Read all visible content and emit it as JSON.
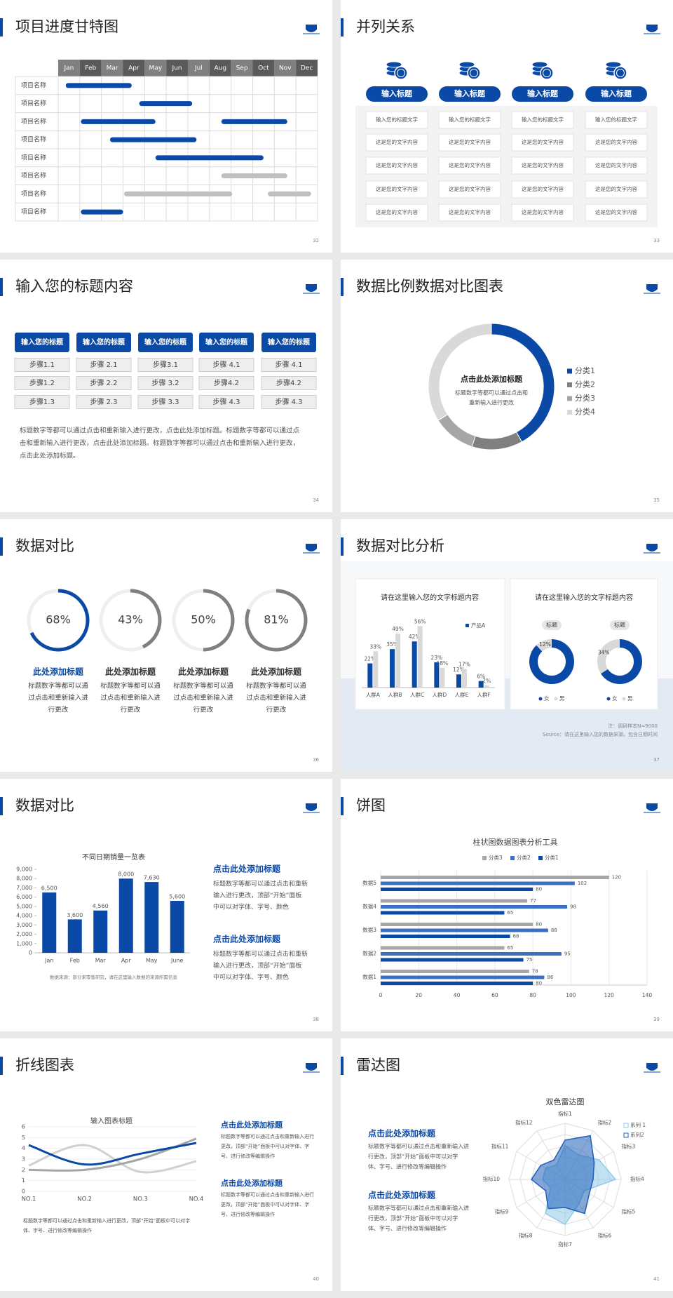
{
  "slides": [
    {
      "title": "项目进度甘特图",
      "page": "32",
      "chart_data": {
        "type": "gantt",
        "categories": [
          "Jan",
          "Feb",
          "Mar",
          "Apr",
          "May",
          "Jun",
          "Jul",
          "Aug",
          "Sep",
          "Oct",
          "Nov",
          "Dec"
        ],
        "rows": [
          {
            "label": "项目名称",
            "bars": [
              {
                "start": 0.35,
                "end": 3.4,
                "color": "#0b49a6"
              }
            ]
          },
          {
            "label": "项目名称",
            "bars": [
              {
                "start": 3.75,
                "end": 6.2,
                "color": "#0b49a6"
              }
            ]
          },
          {
            "label": "项目名称",
            "bars": [
              {
                "start": 1.05,
                "end": 4.5,
                "color": "#0b49a6"
              },
              {
                "start": 7.55,
                "end": 10.6,
                "color": "#0b49a6"
              }
            ]
          },
          {
            "label": "项目名称",
            "bars": [
              {
                "start": 2.4,
                "end": 6.4,
                "color": "#0b49a6"
              }
            ]
          },
          {
            "label": "项目名称",
            "bars": [
              {
                "start": 4.5,
                "end": 9.5,
                "color": "#0b49a6"
              }
            ]
          },
          {
            "label": "项目名称",
            "bars": [
              {
                "start": 7.55,
                "end": 10.6,
                "color": "#bfbfbf"
              }
            ]
          },
          {
            "label": "项目名称",
            "bars": [
              {
                "start": 3.05,
                "end": 8.05,
                "color": "#bfbfbf"
              },
              {
                "start": 9.7,
                "end": 11.7,
                "color": "#bfbfbf"
              }
            ]
          },
          {
            "label": "项目名称",
            "bars": [
              {
                "start": 1.05,
                "end": 3.0,
                "color": "#0b49a6"
              }
            ]
          }
        ]
      }
    },
    {
      "title": "并列关系",
      "page": "33",
      "columns": [
        {
          "heading": "输入标题",
          "items": [
            "输入您的标题文字",
            "这是您的文字内容",
            "这是您的文字内容",
            "这是您的文字内容",
            "这是您的文字内容"
          ]
        },
        {
          "heading": "输入标题",
          "items": [
            "输入您的标题文字",
            "这是您的文字内容",
            "这是您的文字内容",
            "这是您的文字内容",
            "这是您的文字内容"
          ]
        },
        {
          "heading": "输入标题",
          "items": [
            "输入您的标题文字",
            "这是您的文字内容",
            "这是您的文字内容",
            "这是您的文字内容",
            "这是您的文字内容"
          ]
        },
        {
          "heading": "输入标题",
          "items": [
            "输入您的标题文字",
            "这是您的文字内容",
            "这是您的文字内容",
            "这是您的文字内容",
            "这是您的文字内容"
          ]
        }
      ]
    },
    {
      "title": "输入您的标题内容",
      "page": "34",
      "columns": [
        {
          "heading": "输入您的标题",
          "steps": [
            "步骤1.1",
            "步骤1.2",
            "步骤1.3"
          ]
        },
        {
          "heading": "输入您的标题",
          "steps": [
            "步骤 2.1",
            "步骤 2.2",
            "步骤 2.3"
          ]
        },
        {
          "heading": "输入您的标题",
          "steps": [
            "步骤3.1",
            "步骤 3.2",
            "步骤 3.3"
          ]
        },
        {
          "heading": "输入您的标题",
          "steps": [
            "步骤 4.1",
            "步骤4.2",
            "步骤 4.3"
          ]
        },
        {
          "heading": "输入您的标题",
          "steps": [
            "步骤 4.1",
            "步骤4.2",
            "步骤 4.3"
          ]
        }
      ],
      "paragraph": [
        "标题数字等都可以通过点击和重新输入进行更改，点击此处添加标题。标题数字等都可以通过点",
        "击和重新输入进行更改，点击此处添加标题。标题数字等都可以通过点击和重新输入进行更改，",
        "点击此处添加标题。"
      ]
    },
    {
      "title": "数据比例数据对比图表",
      "page": "35",
      "chart_data": {
        "type": "donut",
        "center_title": "点击此处添加标题",
        "center_text": [
          "标题数字等都可以通过点击和",
          "重新输入进行更改"
        ],
        "categories": [
          "分类1",
          "分类2",
          "分类3",
          "分类4"
        ],
        "values": [
          42,
          13,
          11,
          34
        ],
        "colors": [
          "#0b49a6",
          "#808080",
          "#a6a6a6",
          "#d9d9d9"
        ],
        "legend": "right"
      }
    },
    {
      "title": "数据对比",
      "page": "36",
      "chart_data": {
        "type": "rings",
        "values": [
          68,
          43,
          50,
          81
        ],
        "value_labels": [
          "68%",
          "43%",
          "50%",
          "81%"
        ],
        "colors": [
          "#0b49a6",
          "#808080",
          "#808080",
          "#808080"
        ],
        "ylim": [
          0,
          100
        ]
      },
      "items": [
        {
          "heading": "此处添加标题",
          "color": "#0b49a6",
          "text": [
            "标题数字等都可以通",
            "过点击和重新输入进",
            "行更改"
          ]
        },
        {
          "heading": "此处添加标题",
          "color": "#333333",
          "text": [
            "标题数字等都可以通",
            "过点击和重新输入进",
            "行更改"
          ]
        },
        {
          "heading": "此处添加标题",
          "color": "#333333",
          "text": [
            "标题数字等都可以通",
            "过点击和重新输入进",
            "行更改"
          ]
        },
        {
          "heading": "此处添加标题",
          "color": "#333333",
          "text": [
            "标题数字等都可以通",
            "过点击和重新输入进",
            "行更改"
          ]
        }
      ]
    },
    {
      "title": "数据对比分析",
      "page": "37",
      "chart_data": [
        {
          "type": "bar",
          "title": "请在这里输入您的文字标题内容",
          "categories": [
            "人群A",
            "人群B",
            "人群C",
            "人群D",
            "人群E",
            "人群F"
          ],
          "ylim": [
            0,
            60
          ],
          "series": [
            {
              "name": "产品A",
              "color": "#0b49a6",
              "values": [
                22,
                35,
                42,
                23,
                12,
                6
              ],
              "value_labels": [
                "22%",
                "35%",
                "42%",
                "23%",
                "12%",
                "6%"
              ]
            },
            {
              "color": "#d9d9d9",
              "values": [
                33,
                49,
                56,
                18,
                17,
                2
              ],
              "value_labels": [
                "33%",
                "49%",
                "56%",
                "18%",
                "17%",
                "2%"
              ]
            }
          ]
        },
        {
          "type": "donut-pair",
          "title": "请在这里输入您的文字标题内容",
          "categories": [
            "女",
            "男"
          ],
          "colors": [
            "#0b49a6",
            "#d9d9d9"
          ],
          "donuts": [
            {
              "label": "标题",
              "values": [
                88,
                12
              ],
              "value_labels": [
                null,
                "12%"
              ]
            },
            {
              "label": "标题",
              "values": [
                66,
                34
              ],
              "value_labels": [
                null,
                "34%"
              ]
            }
          ]
        }
      ],
      "notes": [
        "注：调研样本N=9000",
        "Source：请在这里输入您的数据来源，包含日期时间"
      ]
    },
    {
      "title": "数据对比",
      "page": "38",
      "chart_data": {
        "type": "bar",
        "title": "不同日期销量一览表",
        "categories": [
          "Jan",
          "Feb",
          "Mar",
          "Apr",
          "May",
          "June"
        ],
        "values": [
          6500,
          3600,
          4560,
          8000,
          7630,
          5600
        ],
        "value_labels": [
          "6,500",
          "3,600",
          "4,560",
          "8,000",
          "7,630",
          "5,600"
        ],
        "color": "#0b49a6",
        "ylim": [
          0,
          9000
        ],
        "yticks": [
          0,
          {
            "value": 1000,
            "label": "1,000"
          },
          {
            "value": 2000,
            "label": "2,000"
          },
          {
            "value": 3000,
            "label": "3,000"
          },
          {
            "value": 4000,
            "label": "4,000"
          },
          {
            "value": 5000,
            "label": "5,000"
          },
          {
            "value": 6000,
            "label": "6,000"
          },
          {
            "value": 7000,
            "label": "7,000"
          },
          {
            "value": 8000,
            "label": "8,000"
          },
          {
            "value": 9000,
            "label": "9,000"
          }
        ],
        "source": "数据来源：部分来零售研究，请在这里输入数据的来源所需信息"
      },
      "items": [
        {
          "heading": "点击此处添加标题",
          "text": [
            "标题数字等都可以通过点击和重新",
            "输入进行更改，顶部“开始”面板",
            "中可以对字体、字号、颜色"
          ]
        },
        {
          "heading": "点击此处添加标题",
          "text": [
            "标题数字等都可以通过点击和重新",
            "输入进行更改，顶部“开始”面板",
            "中可以对字体、字号、颜色"
          ]
        }
      ]
    },
    {
      "title": "饼图",
      "page": "39",
      "chart_data": {
        "type": "hbar",
        "title": "柱状图数据图表分析工具",
        "categories": [
          "数据1",
          "数据2",
          "数据3",
          "数据4",
          "数据5"
        ],
        "series": [
          {
            "name": "分类3",
            "color": "#a6a6a6",
            "values": [
              78,
              65,
              80,
              77,
              120
            ]
          },
          {
            "name": "分类2",
            "color": "#3b6fc4",
            "values": [
              86,
              95,
              88,
              98,
              102
            ]
          },
          {
            "name": "分类1",
            "color": "#0b49a6",
            "values": [
              80,
              75,
              68,
              65,
              80
            ]
          }
        ],
        "xlim": [
          0,
          140
        ],
        "xticks": [
          0,
          20,
          40,
          60,
          80,
          100,
          120,
          140
        ],
        "grid": true
      }
    },
    {
      "title": "折线图表",
      "page": "40",
      "chart_data": {
        "type": "line",
        "title": "输入图表标题",
        "categories": [
          "NO.1",
          "NO.2",
          "NO.3",
          "NO.4"
        ],
        "series": [
          {
            "color": "#d0d0d0",
            "values": [
              2.4,
              4.3,
              1.8,
              2.8
            ]
          },
          {
            "color": "#a6a6a6",
            "values": [
              2.0,
              2.0,
              3.0,
              4.9
            ]
          },
          {
            "color": "#0b49a6",
            "values": [
              4.3,
              2.5,
              3.5,
              4.5
            ]
          }
        ],
        "ylim": [
          0,
          6
        ],
        "yticks": [
          0,
          1,
          2,
          3,
          4,
          5,
          6
        ],
        "grid": true
      },
      "items": [
        {
          "heading": "点击此处添加标题",
          "text": [
            "标题数字等都可以通过点击和重新输入进行",
            "更改，顶部“开始”面板中可以对字体、字",
            "号、进行修改等编辑操作"
          ]
        },
        {
          "heading": "点击此处添加标题",
          "text": [
            "标题数字等都可以通过点击和重新输入进行",
            "更改，顶部“开始”面板中可以对字体、字",
            "号、进行修改等编辑操作"
          ]
        }
      ],
      "paragraph": [
        "标题数字等都可以通过点击和重新输入进行更改，顶部“开始”面板中可以对字",
        "体、字号、进行修改等编辑操作"
      ]
    },
    {
      "title": "雷达图",
      "page": "41",
      "chart_data": {
        "type": "radar",
        "title": "双色雷达图",
        "categories": [
          "指标1",
          "指标2",
          "指标3",
          "指标4",
          "指标5",
          "指标6",
          "指标7",
          "指标8",
          "指标9",
          "指标10",
          "指标11",
          "指标12"
        ],
        "series": [
          {
            "name": "系列 1",
            "color": "#8fcbea",
            "values": [
              6,
              5,
              7,
              9,
              4,
              5,
              8,
              7,
              3,
              4,
              4,
              3
            ]
          },
          {
            "name": "系列2",
            "color": "#1f5fb8",
            "values": [
              7,
              9,
              6,
              5,
              5,
              7,
              5,
              6,
              4,
              6,
              5,
              4
            ]
          }
        ],
        "rlim": [
          0,
          10
        ]
      },
      "items": [
        {
          "heading": "点击此处添加标题",
          "text": [
            "标题数字等都可以通过点击和重新输入进",
            "行更改，顶部“开始”面板中可以对字",
            "体、字号、进行修改等编辑操作"
          ]
        },
        {
          "heading": "点击此处添加标题",
          "text": [
            "标题数字等都可以通过点击和重新输入进",
            "行更改，顶部“开始”面板中可以对字",
            "体、字号、进行修改等编辑操作"
          ]
        }
      ]
    }
  ]
}
